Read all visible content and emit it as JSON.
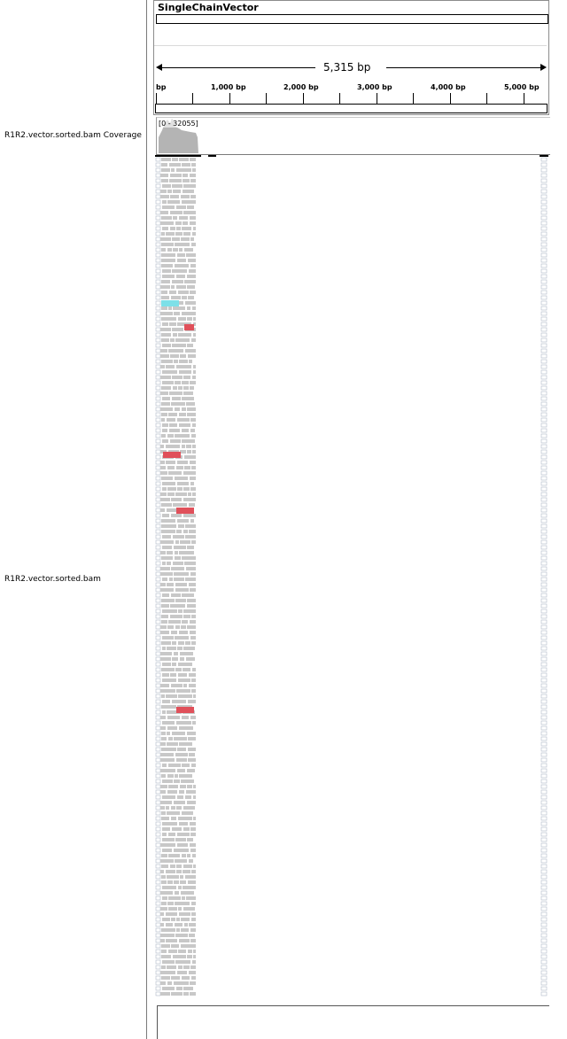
{
  "genome": {
    "name": "SingleChainVector"
  },
  "ruler": {
    "span_label": "5,315 bp",
    "ticks": [
      {
        "label": "bp"
      },
      {
        "label": "1,000 bp"
      },
      {
        "label": "2,000 bp"
      },
      {
        "label": "3,000 bp"
      },
      {
        "label": "4,000 bp"
      },
      {
        "label": "5,000 bp"
      }
    ]
  },
  "tracks": {
    "coverage_name": "R1R2.vector.sorted.bam Coverage",
    "alignment_name": "R1R2.vector.sorted.bam",
    "coverage_range": "[0 - 32055]"
  },
  "colors": {
    "read": "#c8c8c8",
    "mismatch_red": "#e0505a",
    "insert_cyan": "#7de0e8",
    "coverage": "#b4b4b4"
  }
}
